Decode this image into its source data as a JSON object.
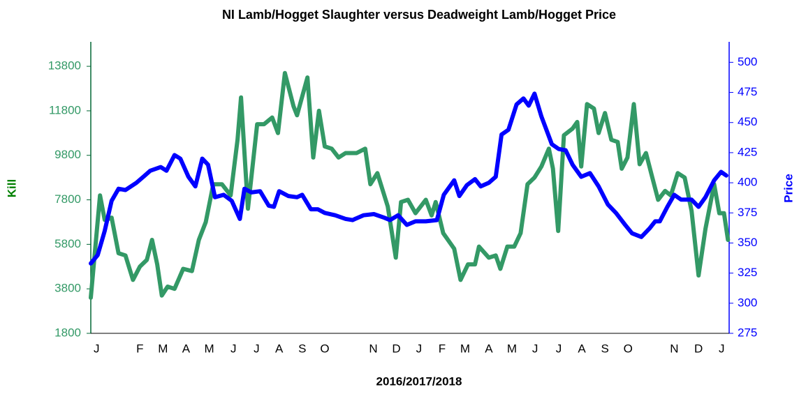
{
  "chart_data": {
    "type": "line",
    "title": "NI Lamb/Hogget Slaughter versus Deadweight Lamb/Hogget Price",
    "x_label": "2016/2017/2018",
    "y_label": "Kill",
    "y2_label": "Price",
    "xlim": [
      0,
      110.5
    ],
    "xticks": [
      {
        "value": 1,
        "label": "J"
      },
      {
        "value": 8.5,
        "label": "F"
      },
      {
        "value": 12.5,
        "label": "M"
      },
      {
        "value": 16.5,
        "label": "A"
      },
      {
        "value": 20.5,
        "label": "M"
      },
      {
        "value": 24.7,
        "label": "J"
      },
      {
        "value": 28.7,
        "label": "J"
      },
      {
        "value": 32.6,
        "label": "A"
      },
      {
        "value": 36.6,
        "label": "S"
      },
      {
        "value": 40.5,
        "label": "O"
      },
      {
        "value": 48.9,
        "label": "N"
      },
      {
        "value": 52.9,
        "label": "D"
      },
      {
        "value": 56.8,
        "label": "J"
      },
      {
        "value": 60.8,
        "label": "F"
      },
      {
        "value": 64.8,
        "label": "M"
      },
      {
        "value": 68.9,
        "label": "A"
      },
      {
        "value": 72.9,
        "label": "M"
      },
      {
        "value": 76.9,
        "label": "J"
      },
      {
        "value": 81,
        "label": "J"
      },
      {
        "value": 85,
        "label": "A"
      },
      {
        "value": 89,
        "label": "S"
      },
      {
        "value": 93,
        "label": "O"
      },
      {
        "value": 101,
        "label": "N"
      },
      {
        "value": 105.2,
        "label": "D"
      },
      {
        "value": 109.2,
        "label": "J"
      }
    ],
    "ylim": [
      1800,
      14900
    ],
    "yticks": [
      1800,
      3800,
      5800,
      7800,
      9800,
      11800,
      13800
    ],
    "y2lim": [
      275,
      517
    ],
    "y2ticks": [
      275,
      300,
      325,
      350,
      375,
      400,
      425,
      450,
      475,
      500
    ],
    "y_color": "#339966",
    "y2_color": "#0000ff",
    "grid": false,
    "series": [
      {
        "name": "Kill",
        "color": "#339966",
        "axis": "y",
        "x": [
          0,
          1.6,
          2.4,
          3.6,
          4.8,
          6,
          7.3,
          8.5,
          9.7,
          10.6,
          11.5,
          12.3,
          13.3,
          14.5,
          16,
          17.5,
          18.7,
          19.9,
          21.2,
          22.7,
          24.2,
          25.4,
          26,
          27.2,
          28.8,
          30,
          31.4,
          32.4,
          33.6,
          35.1,
          35.7,
          37.5,
          38.5,
          39.5,
          40.5,
          41.7,
          42.9,
          44.1,
          46,
          47.5,
          48.4,
          49.6,
          51.4,
          52.8,
          53.7,
          54.9,
          56.2,
          58,
          59,
          59.7,
          61,
          62.9,
          64,
          65.3,
          66.5,
          67.2,
          68.9,
          70.1,
          70.9,
          72.1,
          73.3,
          74.4,
          75.6,
          76.8,
          78,
          79.3,
          80,
          80.9,
          81.9,
          83.4,
          84.2,
          84.9,
          85.9,
          87.1,
          87.9,
          89,
          90.1,
          91.2,
          91.9,
          92.9,
          94,
          95,
          96.1,
          97.3,
          98.2,
          99.4,
          100.4,
          101.6,
          102.8,
          104,
          105.2,
          106.4,
          107.9,
          108.8,
          109.6,
          110.3
        ],
        "values": [
          3400,
          8000,
          6900,
          7000,
          5400,
          5300,
          4200,
          4800,
          5100,
          6000,
          4900,
          3500,
          3900,
          3800,
          4700,
          4600,
          6000,
          6800,
          8500,
          8500,
          8000,
          10500,
          12400,
          7400,
          11200,
          11200,
          11500,
          10800,
          13500,
          12000,
          11600,
          13300,
          9700,
          11800,
          10200,
          10100,
          9700,
          9900,
          9900,
          10100,
          8500,
          9000,
          7500,
          5200,
          7700,
          7800,
          7200,
          7800,
          7100,
          7700,
          6300,
          5600,
          4200,
          4900,
          4900,
          5700,
          5200,
          5300,
          4700,
          5700,
          5700,
          6300,
          8500,
          8800,
          9300,
          10100,
          9200,
          6400,
          10700,
          11000,
          11300,
          9300,
          12100,
          11900,
          10800,
          11700,
          10500,
          10400,
          9200,
          9700,
          12100,
          9400,
          9900,
          8700,
          7800,
          8200,
          8000,
          9000,
          8800,
          7300,
          4400,
          6500,
          8500,
          7200,
          7200,
          6000
        ]
      },
      {
        "name": "Price",
        "color": "#0000ff",
        "axis": "y2",
        "x": [
          0,
          1.2,
          2.4,
          3.6,
          4.8,
          6,
          7.9,
          9.1,
          10.3,
          12.1,
          13.1,
          14.5,
          15.5,
          16.9,
          18.1,
          19.3,
          20.3,
          21.5,
          23,
          24.4,
          25.8,
          26.6,
          27.8,
          29.3,
          30.8,
          31.7,
          32.6,
          34.2,
          35.7,
          36.6,
          38.1,
          39.3,
          40.5,
          42.3,
          44.1,
          45.3,
          47.2,
          49,
          50.8,
          51.8,
          53.2,
          54.7,
          56.2,
          58,
          59.9,
          61.1,
          62.9,
          63.8,
          65.1,
          66.5,
          67.5,
          68.9,
          70.1,
          71.1,
          72.3,
          73.7,
          74.9,
          75.8,
          76.8,
          78,
          79.8,
          81,
          82.2,
          83.4,
          84.9,
          86.4,
          87.9,
          89.5,
          90.9,
          92.5,
          93.7,
          95.3,
          96.7,
          97.7,
          98.5,
          99.8,
          101,
          102.2,
          104,
          105.2,
          106.4,
          107.9,
          109.1,
          110
        ],
        "values": [
          333,
          340,
          360,
          385,
          395,
          394,
          400,
          405,
          410,
          413,
          410,
          423,
          420,
          405,
          397,
          420,
          415,
          388,
          390,
          385,
          370,
          395,
          392,
          393,
          381,
          380,
          393,
          389,
          388,
          390,
          378,
          378,
          375,
          373,
          370,
          369,
          373,
          374,
          371,
          369,
          373,
          365,
          368,
          368,
          369,
          390,
          402,
          389,
          398,
          403,
          397,
          400,
          405,
          440,
          444,
          465,
          470,
          464,
          474,
          455,
          432,
          428,
          427,
          415,
          405,
          408,
          397,
          382,
          375,
          365,
          358,
          355,
          362,
          368,
          368,
          380,
          390,
          386,
          386,
          380,
          388,
          402,
          409,
          406
        ]
      }
    ]
  }
}
